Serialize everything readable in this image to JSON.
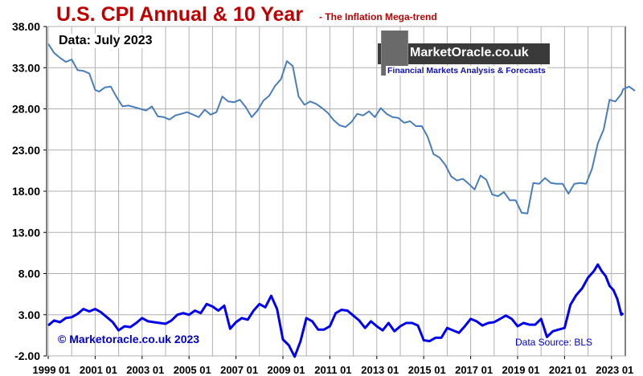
{
  "title": "U.S. CPI Annual & 10 Year",
  "subtitle": "- The Inflation Mega-trend",
  "data_note": "Data: July 2023",
  "logo": {
    "name": "MarketOracle.co.uk",
    "tagline": "Financial Markets Analysis & Forecasts"
  },
  "copyright": "© Marketoracle.co.uk 2023",
  "source": "Data Source: BLS",
  "colors": {
    "title": "#c00000",
    "ten_year_line": "#4a7ebb",
    "annual_line": "#0000ee",
    "text_blue": "#0000cc"
  },
  "chart_data": {
    "type": "line",
    "ylim": [
      -2,
      38
    ],
    "y_ticks": [
      "38.00",
      "33.00",
      "28.00",
      "23.00",
      "18.00",
      "13.00",
      "8.00",
      "3.00",
      "-2.00"
    ],
    "x_ticks": [
      "1999 01",
      "2001 01",
      "2003 01",
      "2005 01",
      "2007 01",
      "2009 01",
      "2011 01",
      "2013 01",
      "2015 01",
      "2017 01",
      "2019 01",
      "2021 01",
      "2023 01"
    ],
    "x_range": [
      "1999-01",
      "2023-07"
    ],
    "grid": true,
    "series": [
      {
        "id": "ten_year",
        "color": "#4a7ebb",
        "points": [
          [
            "1999-01",
            35.9
          ],
          [
            "1999-04",
            34.8
          ],
          [
            "1999-07",
            34.2
          ],
          [
            "1999-10",
            33.7
          ],
          [
            "2000-01",
            34.0
          ],
          [
            "2000-04",
            32.7
          ],
          [
            "2000-07",
            32.6
          ],
          [
            "2000-10",
            32.3
          ],
          [
            "2001-01",
            30.3
          ],
          [
            "2001-03",
            30.1
          ],
          [
            "2001-06",
            30.6
          ],
          [
            "2001-09",
            30.7
          ],
          [
            "2001-12",
            29.4
          ],
          [
            "2002-03",
            28.3
          ],
          [
            "2002-06",
            28.4
          ],
          [
            "2002-09",
            28.2
          ],
          [
            "2002-12",
            28.0
          ],
          [
            "2003-03",
            27.8
          ],
          [
            "2003-06",
            28.3
          ],
          [
            "2003-09",
            27.1
          ],
          [
            "2003-12",
            27.0
          ],
          [
            "2004-03",
            26.7
          ],
          [
            "2004-06",
            27.2
          ],
          [
            "2004-09",
            27.4
          ],
          [
            "2004-12",
            27.6
          ],
          [
            "2005-03",
            27.3
          ],
          [
            "2005-06",
            27.0
          ],
          [
            "2005-09",
            27.9
          ],
          [
            "2005-12",
            27.3
          ],
          [
            "2006-03",
            27.6
          ],
          [
            "2006-06",
            29.5
          ],
          [
            "2006-09",
            28.9
          ],
          [
            "2006-12",
            28.8
          ],
          [
            "2007-03",
            29.1
          ],
          [
            "2007-06",
            28.2
          ],
          [
            "2007-09",
            27.0
          ],
          [
            "2007-12",
            27.8
          ],
          [
            "2008-03",
            29.0
          ],
          [
            "2008-06",
            29.6
          ],
          [
            "2008-09",
            30.8
          ],
          [
            "2008-12",
            31.6
          ],
          [
            "2009-03",
            33.8
          ],
          [
            "2009-06",
            33.2
          ],
          [
            "2009-09",
            29.5
          ],
          [
            "2009-12",
            28.5
          ],
          [
            "2010-03",
            28.9
          ],
          [
            "2010-06",
            28.6
          ],
          [
            "2010-09",
            28.1
          ],
          [
            "2010-12",
            27.5
          ],
          [
            "2011-03",
            26.6
          ],
          [
            "2011-06",
            26.0
          ],
          [
            "2011-09",
            25.8
          ],
          [
            "2011-12",
            26.4
          ],
          [
            "2012-03",
            27.4
          ],
          [
            "2012-06",
            27.2
          ],
          [
            "2012-09",
            27.7
          ],
          [
            "2012-12",
            27.0
          ],
          [
            "2013-03",
            28.1
          ],
          [
            "2013-06",
            27.4
          ],
          [
            "2013-09",
            27.0
          ],
          [
            "2013-12",
            26.9
          ],
          [
            "2014-03",
            26.3
          ],
          [
            "2014-06",
            26.5
          ],
          [
            "2014-09",
            25.9
          ],
          [
            "2014-12",
            25.9
          ],
          [
            "2015-03",
            24.6
          ],
          [
            "2015-06",
            22.5
          ],
          [
            "2015-09",
            22.1
          ],
          [
            "2015-12",
            21.2
          ],
          [
            "2016-03",
            19.8
          ],
          [
            "2016-06",
            19.3
          ],
          [
            "2016-09",
            19.5
          ],
          [
            "2016-12",
            18.9
          ],
          [
            "2017-03",
            18.2
          ],
          [
            "2017-06",
            19.9
          ],
          [
            "2017-09",
            19.4
          ],
          [
            "2017-12",
            17.6
          ],
          [
            "2018-03",
            17.4
          ],
          [
            "2018-06",
            17.9
          ],
          [
            "2018-09",
            16.9
          ],
          [
            "2018-12",
            16.9
          ],
          [
            "2019-03",
            15.4
          ],
          [
            "2019-06",
            15.3
          ],
          [
            "2019-09",
            19.0
          ],
          [
            "2019-12",
            18.9
          ],
          [
            "2020-03",
            19.6
          ],
          [
            "2020-06",
            19.0
          ],
          [
            "2020-09",
            18.9
          ],
          [
            "2020-12",
            18.9
          ],
          [
            "2021-03",
            17.7
          ],
          [
            "2021-06",
            18.9
          ],
          [
            "2021-09",
            19.0
          ],
          [
            "2021-12",
            18.9
          ],
          [
            "2022-03",
            20.7
          ],
          [
            "2022-06",
            23.8
          ],
          [
            "2022-09",
            25.5
          ],
          [
            "2022-12",
            29.1
          ],
          [
            "2023-03",
            28.9
          ],
          [
            "2023-06",
            29.8
          ],
          [
            "2023-07",
            30.4
          ],
          [
            "2023-10",
            30.7
          ],
          [
            "2024-01",
            30.2
          ]
        ]
      },
      {
        "id": "annual",
        "color": "#0000ee",
        "points": [
          [
            "1999-01",
            1.7
          ],
          [
            "1999-04",
            2.3
          ],
          [
            "1999-07",
            2.1
          ],
          [
            "1999-10",
            2.6
          ],
          [
            "2000-01",
            2.7
          ],
          [
            "2000-04",
            3.1
          ],
          [
            "2000-07",
            3.7
          ],
          [
            "2000-10",
            3.4
          ],
          [
            "2001-01",
            3.7
          ],
          [
            "2001-04",
            3.3
          ],
          [
            "2001-07",
            2.7
          ],
          [
            "2001-10",
            2.1
          ],
          [
            "2002-01",
            1.1
          ],
          [
            "2002-04",
            1.6
          ],
          [
            "2002-07",
            1.5
          ],
          [
            "2002-10",
            2.0
          ],
          [
            "2003-01",
            2.6
          ],
          [
            "2003-04",
            2.2
          ],
          [
            "2003-07",
            2.1
          ],
          [
            "2003-10",
            2.0
          ],
          [
            "2004-01",
            1.9
          ],
          [
            "2004-04",
            2.3
          ],
          [
            "2004-07",
            3.0
          ],
          [
            "2004-10",
            3.2
          ],
          [
            "2005-01",
            3.0
          ],
          [
            "2005-04",
            3.5
          ],
          [
            "2005-07",
            3.2
          ],
          [
            "2005-10",
            4.3
          ],
          [
            "2006-01",
            4.0
          ],
          [
            "2006-04",
            3.5
          ],
          [
            "2006-07",
            4.1
          ],
          [
            "2006-10",
            1.3
          ],
          [
            "2007-01",
            2.1
          ],
          [
            "2007-04",
            2.6
          ],
          [
            "2007-07",
            2.4
          ],
          [
            "2007-10",
            3.5
          ],
          [
            "2008-01",
            4.3
          ],
          [
            "2008-04",
            3.9
          ],
          [
            "2008-07",
            5.3
          ],
          [
            "2008-10",
            3.7
          ],
          [
            "2009-01",
            0.0
          ],
          [
            "2009-04",
            -0.7
          ],
          [
            "2009-07",
            -2.1
          ],
          [
            "2009-10",
            -0.2
          ],
          [
            "2010-01",
            2.6
          ],
          [
            "2010-04",
            2.2
          ],
          [
            "2010-07",
            1.2
          ],
          [
            "2010-10",
            1.2
          ],
          [
            "2011-01",
            1.6
          ],
          [
            "2011-04",
            3.2
          ],
          [
            "2011-07",
            3.6
          ],
          [
            "2011-10",
            3.5
          ],
          [
            "2012-01",
            2.9
          ],
          [
            "2012-04",
            2.3
          ],
          [
            "2012-07",
            1.4
          ],
          [
            "2012-10",
            2.2
          ],
          [
            "2013-01",
            1.6
          ],
          [
            "2013-04",
            1.1
          ],
          [
            "2013-07",
            2.0
          ],
          [
            "2013-10",
            1.0
          ],
          [
            "2014-01",
            1.6
          ],
          [
            "2014-04",
            2.0
          ],
          [
            "2014-07",
            2.0
          ],
          [
            "2014-10",
            1.7
          ],
          [
            "2015-01",
            -0.1
          ],
          [
            "2015-04",
            -0.2
          ],
          [
            "2015-07",
            0.2
          ],
          [
            "2015-10",
            0.2
          ],
          [
            "2016-01",
            1.4
          ],
          [
            "2016-04",
            1.1
          ],
          [
            "2016-07",
            0.8
          ],
          [
            "2016-10",
            1.6
          ],
          [
            "2017-01",
            2.5
          ],
          [
            "2017-04",
            2.2
          ],
          [
            "2017-07",
            1.7
          ],
          [
            "2017-10",
            2.0
          ],
          [
            "2018-01",
            2.1
          ],
          [
            "2018-04",
            2.5
          ],
          [
            "2018-07",
            2.9
          ],
          [
            "2018-10",
            2.5
          ],
          [
            "2019-01",
            1.6
          ],
          [
            "2019-04",
            2.0
          ],
          [
            "2019-07",
            1.8
          ],
          [
            "2019-10",
            1.8
          ],
          [
            "2020-01",
            2.5
          ],
          [
            "2020-04",
            0.3
          ],
          [
            "2020-07",
            1.0
          ],
          [
            "2020-10",
            1.2
          ],
          [
            "2021-01",
            1.4
          ],
          [
            "2021-04",
            4.2
          ],
          [
            "2021-07",
            5.4
          ],
          [
            "2021-10",
            6.2
          ],
          [
            "2022-01",
            7.5
          ],
          [
            "2022-04",
            8.3
          ],
          [
            "2022-06",
            9.1
          ],
          [
            "2022-08",
            8.3
          ],
          [
            "2022-10",
            7.7
          ],
          [
            "2022-12",
            6.5
          ],
          [
            "2023-02",
            6.0
          ],
          [
            "2023-04",
            4.9
          ],
          [
            "2023-06",
            3.0
          ],
          [
            "2023-07",
            3.2
          ]
        ]
      }
    ]
  }
}
